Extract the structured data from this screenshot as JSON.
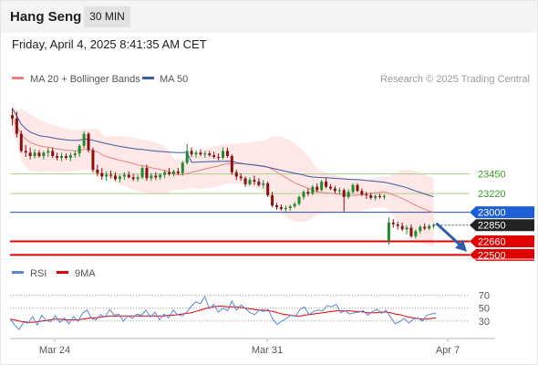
{
  "header": {
    "title": "Hang Seng",
    "interval": "30 MIN",
    "datetime": "Friday, April 4, 2025 8:41:35 AM CET"
  },
  "colors": {
    "candle_up": "#1f8a2e",
    "candle_down": "#8a1010",
    "ma20": "#ef7f7f",
    "bollinger_fill": "#fde3e3",
    "ma50": "#3a5aa6",
    "support_line": "#e00000",
    "resistance_line": "#a8d48a",
    "pivot_line": "#2a4f9e",
    "pivot_badge": "#1f5fd6",
    "current_badge": "#222222",
    "support_badge": "#e00000",
    "rsi": "#5b86d6",
    "rsi_ma": "#e00000",
    "arrow": "#2a5fb0",
    "level_text_green": "#3a9a2a"
  },
  "chart_data": [
    {
      "type": "line",
      "name": "price",
      "legend": [
        {
          "label": "MA 20 + Bollinger Bands",
          "color": "#ef7f7f"
        },
        {
          "label": "MA 50",
          "color": "#3a5aa6"
        }
      ],
      "watermark": "Research © 2025 Trading Central",
      "x_ticks": [
        "Mar 24",
        "Mar 31",
        "Apr 7"
      ],
      "levels": [
        {
          "value": 23450,
          "label": "23450",
          "kind": "resistance"
        },
        {
          "value": 23220,
          "label": "23220",
          "kind": "resistance"
        },
        {
          "value": 23000,
          "label": "23000",
          "kind": "pivot"
        },
        {
          "value": 22850,
          "label": "22850",
          "kind": "current"
        },
        {
          "value": 22660,
          "label": "22660",
          "kind": "support"
        },
        {
          "value": 22500,
          "label": "22500",
          "kind": "support"
        }
      ],
      "arrow": "down",
      "ylim": [
        22440,
        24420
      ],
      "candles": [
        [
          24140,
          24220,
          24020,
          24100
        ],
        [
          24100,
          24180,
          23880,
          23920
        ],
        [
          23920,
          23960,
          23700,
          23720
        ],
        [
          23720,
          23790,
          23650,
          23700
        ],
        [
          23700,
          23760,
          23620,
          23660
        ],
        [
          23660,
          23740,
          23630,
          23700
        ],
        [
          23700,
          23730,
          23640,
          23660
        ],
        [
          23660,
          23720,
          23620,
          23700
        ],
        [
          23700,
          23760,
          23650,
          23720
        ],
        [
          23720,
          23760,
          23640,
          23660
        ],
        [
          23660,
          23700,
          23610,
          23640
        ],
        [
          23640,
          23700,
          23600,
          23660
        ],
        [
          23660,
          23690,
          23620,
          23640
        ],
        [
          23640,
          23700,
          23600,
          23670
        ],
        [
          23670,
          23720,
          23640,
          23690
        ],
        [
          23690,
          23800,
          23650,
          23780
        ],
        [
          23780,
          23950,
          23750,
          23920
        ],
        [
          23920,
          23940,
          23700,
          23730
        ],
        [
          23730,
          23760,
          23470,
          23500
        ],
        [
          23500,
          23560,
          23420,
          23460
        ],
        [
          23460,
          23520,
          23380,
          23420
        ],
        [
          23420,
          23480,
          23370,
          23440
        ],
        [
          23440,
          23490,
          23400,
          23430
        ],
        [
          23430,
          23470,
          23370,
          23390
        ],
        [
          23390,
          23440,
          23350,
          23420
        ],
        [
          23420,
          23470,
          23380,
          23440
        ],
        [
          23440,
          23480,
          23400,
          23410
        ],
        [
          23410,
          23450,
          23370,
          23390
        ],
        [
          23390,
          23440,
          23360,
          23410
        ],
        [
          23410,
          23540,
          23390,
          23520
        ],
        [
          23520,
          23560,
          23370,
          23400
        ],
        [
          23400,
          23460,
          23370,
          23430
        ],
        [
          23430,
          23470,
          23380,
          23410
        ],
        [
          23410,
          23460,
          23380,
          23440
        ],
        [
          23440,
          23500,
          23400,
          23470
        ],
        [
          23470,
          23520,
          23430,
          23450
        ],
        [
          23450,
          23500,
          23420,
          23480
        ],
        [
          23480,
          23520,
          23440,
          23460
        ],
        [
          23460,
          23600,
          23430,
          23580
        ],
        [
          23580,
          23800,
          23560,
          23720
        ],
        [
          23720,
          23760,
          23650,
          23680
        ],
        [
          23680,
          23730,
          23640,
          23700
        ],
        [
          23700,
          23740,
          23660,
          23680
        ],
        [
          23680,
          23720,
          23640,
          23690
        ],
        [
          23690,
          23720,
          23650,
          23670
        ],
        [
          23670,
          23710,
          23630,
          23650
        ],
        [
          23650,
          23690,
          23610,
          23640
        ],
        [
          23640,
          23760,
          23620,
          23720
        ],
        [
          23720,
          23760,
          23640,
          23660
        ],
        [
          23660,
          23680,
          23440,
          23470
        ],
        [
          23470,
          23500,
          23380,
          23420
        ],
        [
          23420,
          23460,
          23370,
          23400
        ],
        [
          23400,
          23420,
          23300,
          23330
        ],
        [
          23330,
          23410,
          23310,
          23380
        ],
        [
          23380,
          23430,
          23320,
          23360
        ],
        [
          23360,
          23400,
          23300,
          23320
        ],
        [
          23320,
          23380,
          23280,
          23340
        ],
        [
          23340,
          23360,
          23180,
          23200
        ],
        [
          23200,
          23240,
          23060,
          23080
        ],
        [
          23080,
          23110,
          23030,
          23060
        ],
        [
          23060,
          23090,
          23020,
          23040
        ],
        [
          23040,
          23080,
          23010,
          23050
        ],
        [
          23050,
          23090,
          23020,
          23070
        ],
        [
          23070,
          23120,
          23050,
          23100
        ],
        [
          23100,
          23200,
          23080,
          23180
        ],
        [
          23180,
          23260,
          23150,
          23240
        ],
        [
          23240,
          23280,
          23190,
          23220
        ],
        [
          23220,
          23320,
          23200,
          23300
        ],
        [
          23300,
          23340,
          23230,
          23260
        ],
        [
          23260,
          23380,
          23250,
          23360
        ],
        [
          23360,
          23400,
          23280,
          23300
        ],
        [
          23300,
          23330,
          23260,
          23280
        ],
        [
          23280,
          23310,
          23220,
          23250
        ],
        [
          23250,
          23290,
          23210,
          23260
        ],
        [
          23260,
          23280,
          23010,
          23180
        ],
        [
          23180,
          23270,
          23160,
          23240
        ],
        [
          23240,
          23340,
          23220,
          23320
        ],
        [
          23320,
          23340,
          23240,
          23250
        ],
        [
          23250,
          23280,
          23190,
          23210
        ],
        [
          23210,
          23240,
          23160,
          23200
        ],
        [
          23200,
          23230,
          23150,
          23170
        ],
        [
          23170,
          23210,
          23140,
          23190
        ],
        [
          23190,
          23220,
          23160,
          23180
        ],
        [
          23180,
          23210,
          23150,
          23190
        ],
        [
          22660,
          22940,
          22620,
          22880
        ],
        [
          22880,
          22920,
          22820,
          22860
        ],
        [
          22860,
          22890,
          22800,
          22840
        ],
        [
          22840,
          22880,
          22780,
          22800
        ],
        [
          22800,
          22850,
          22740,
          22820
        ],
        [
          22820,
          22860,
          22700,
          22720
        ],
        [
          22720,
          22800,
          22690,
          22780
        ],
        [
          22780,
          22850,
          22750,
          22830
        ],
        [
          22830,
          22870,
          22790,
          22810
        ],
        [
          22810,
          22860,
          22790,
          22840
        ],
        [
          22840,
          22870,
          22810,
          22850
        ]
      ]
    },
    {
      "type": "line",
      "name": "rsi",
      "legend": [
        {
          "label": "RSI",
          "color": "#5b86d6"
        },
        {
          "label": "9MA",
          "color": "#e00000"
        }
      ],
      "levels": [
        70,
        50,
        30
      ],
      "ylim": [
        10,
        85
      ],
      "rsi_values": [
        34,
        24,
        17,
        28,
        27,
        37,
        24,
        39,
        31,
        29,
        38,
        28,
        35,
        26,
        37,
        30,
        42,
        47,
        34,
        32,
        40,
        36,
        48,
        39,
        41,
        30,
        38,
        34,
        41,
        39,
        47,
        36,
        44,
        32,
        41,
        35,
        47,
        40,
        38,
        44,
        53,
        60,
        57,
        68,
        49,
        56,
        44,
        50,
        46,
        61,
        47,
        55,
        49,
        43,
        40,
        47,
        45,
        48,
        33,
        25,
        30,
        34,
        39,
        37,
        48,
        52,
        40,
        45,
        47,
        46,
        54,
        52,
        56,
        43,
        46,
        41,
        43,
        44,
        46,
        39,
        45,
        48,
        42,
        47,
        36,
        26,
        29,
        34,
        27,
        33,
        35,
        30,
        39,
        41,
        42
      ],
      "ma_values": [
        33,
        32,
        30,
        29,
        28,
        28,
        29,
        30,
        31,
        32,
        33,
        33,
        32,
        32,
        32,
        32,
        33,
        34,
        35,
        35,
        36,
        37,
        38,
        38,
        38,
        38,
        38,
        38,
        38,
        38,
        38,
        38,
        38,
        38,
        38,
        39,
        39,
        40,
        41,
        42,
        43,
        45,
        47,
        49,
        51,
        52,
        53,
        53,
        52,
        52,
        52,
        51,
        50,
        49,
        48,
        47,
        47,
        46,
        45,
        43,
        41,
        40,
        39,
        38,
        38,
        39,
        40,
        41,
        42,
        43,
        44,
        45,
        46,
        46,
        46,
        46,
        45,
        45,
        44,
        43,
        43,
        43,
        44,
        44,
        43,
        41,
        40,
        38,
        36,
        35,
        34,
        33,
        33,
        34,
        35
      ],
      "x_ticks": [
        "Mar 24",
        "Mar 31",
        "Apr 7"
      ]
    }
  ]
}
